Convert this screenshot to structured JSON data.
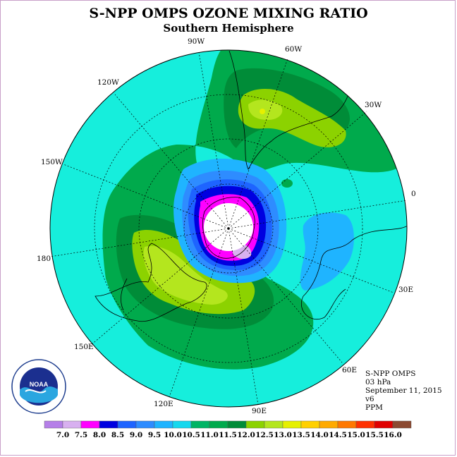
{
  "title": "S-NPP OMPS OZONE MIXING RATIO",
  "subtitle": "Southern Hemisphere",
  "longitude_labels": {
    "lon_90w": "90W",
    "lon_60w": "60W",
    "lon_30w": "30W",
    "lon_120w": "120W",
    "lon_150w": "150W",
    "lon_0": "0",
    "lon_180": "180",
    "lon_30e": "30E",
    "lon_150e": "150E",
    "lon_60e": "60E",
    "lon_120e": "120E",
    "lon_90e": "90E"
  },
  "info": {
    "instrument": "S-NPP OMPS",
    "level": "03 hPa",
    "date": "September 11, 2015",
    "version": "v6",
    "units": "PPM"
  },
  "logo_text": "NOAA",
  "colorbar": {
    "colors": [
      "#b57fe8",
      "#d8b0f0",
      "#ff00ff",
      "#0000e0",
      "#1e64ff",
      "#2e8cff",
      "#1fb4ff",
      "#16d8ee",
      "#00b464",
      "#00aa4c",
      "#008c38",
      "#8cd200",
      "#b4e61e",
      "#e6f000",
      "#ffd000",
      "#ffaa00",
      "#ff7800",
      "#ff3000",
      "#e00000",
      "#8c4a32"
    ],
    "labels": [
      "7.0",
      "7.5",
      "8.0",
      "8.5",
      "9.0",
      "9.5",
      "10.0",
      "10.5",
      "11.0",
      "11.5",
      "12.0",
      "12.5",
      "13.0",
      "13.5",
      "14.0",
      "14.5",
      "15.0",
      "15.5",
      "16.0"
    ]
  }
}
